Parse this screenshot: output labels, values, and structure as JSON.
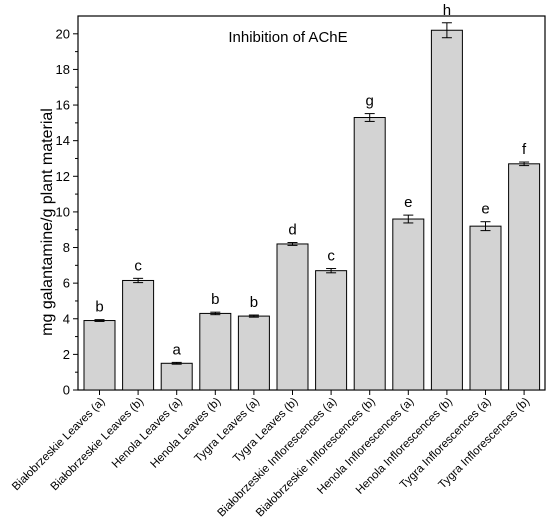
{
  "chart_data": {
    "type": "bar",
    "title": "Inhibition of AChE",
    "xlabel": "",
    "ylabel": "mg galantamine/g plant material",
    "ylim": [
      0,
      21
    ],
    "yticks": [
      0,
      2,
      4,
      6,
      8,
      10,
      12,
      14,
      16,
      18,
      20
    ],
    "grid": false,
    "error_bars": true,
    "categories": [
      "Białobrzeskie Leaves (a)",
      "Białobrzeskie Leaves  (b)",
      "Henola Leaves (a)",
      "Henola Leaves  (b)",
      "Tygra Leaves (a)",
      "Tygra Leaves (b)",
      "Białobrzeskie Inflorescences (a)",
      "Białobrzeskie Inflorescences (b)",
      "Henola Inflorescences (a)",
      "Henola Inflorescences (b)",
      "Tygra Inflorescences (a)",
      "Tygra Inflorescences (b)"
    ],
    "values": [
      3.9,
      6.15,
      1.5,
      4.3,
      4.15,
      8.2,
      6.7,
      15.3,
      9.6,
      20.2,
      9.2,
      12.7
    ],
    "errors": [
      0.05,
      0.12,
      0.05,
      0.07,
      0.06,
      0.08,
      0.12,
      0.22,
      0.22,
      0.42,
      0.25,
      0.1
    ],
    "significance": [
      "b",
      "c",
      "a",
      "b",
      "b",
      "d",
      "c",
      "g",
      "e",
      "h",
      "e",
      "f"
    ],
    "colors": {
      "bar_fill": "#d3d3d3",
      "bar_stroke": "#000000"
    }
  }
}
